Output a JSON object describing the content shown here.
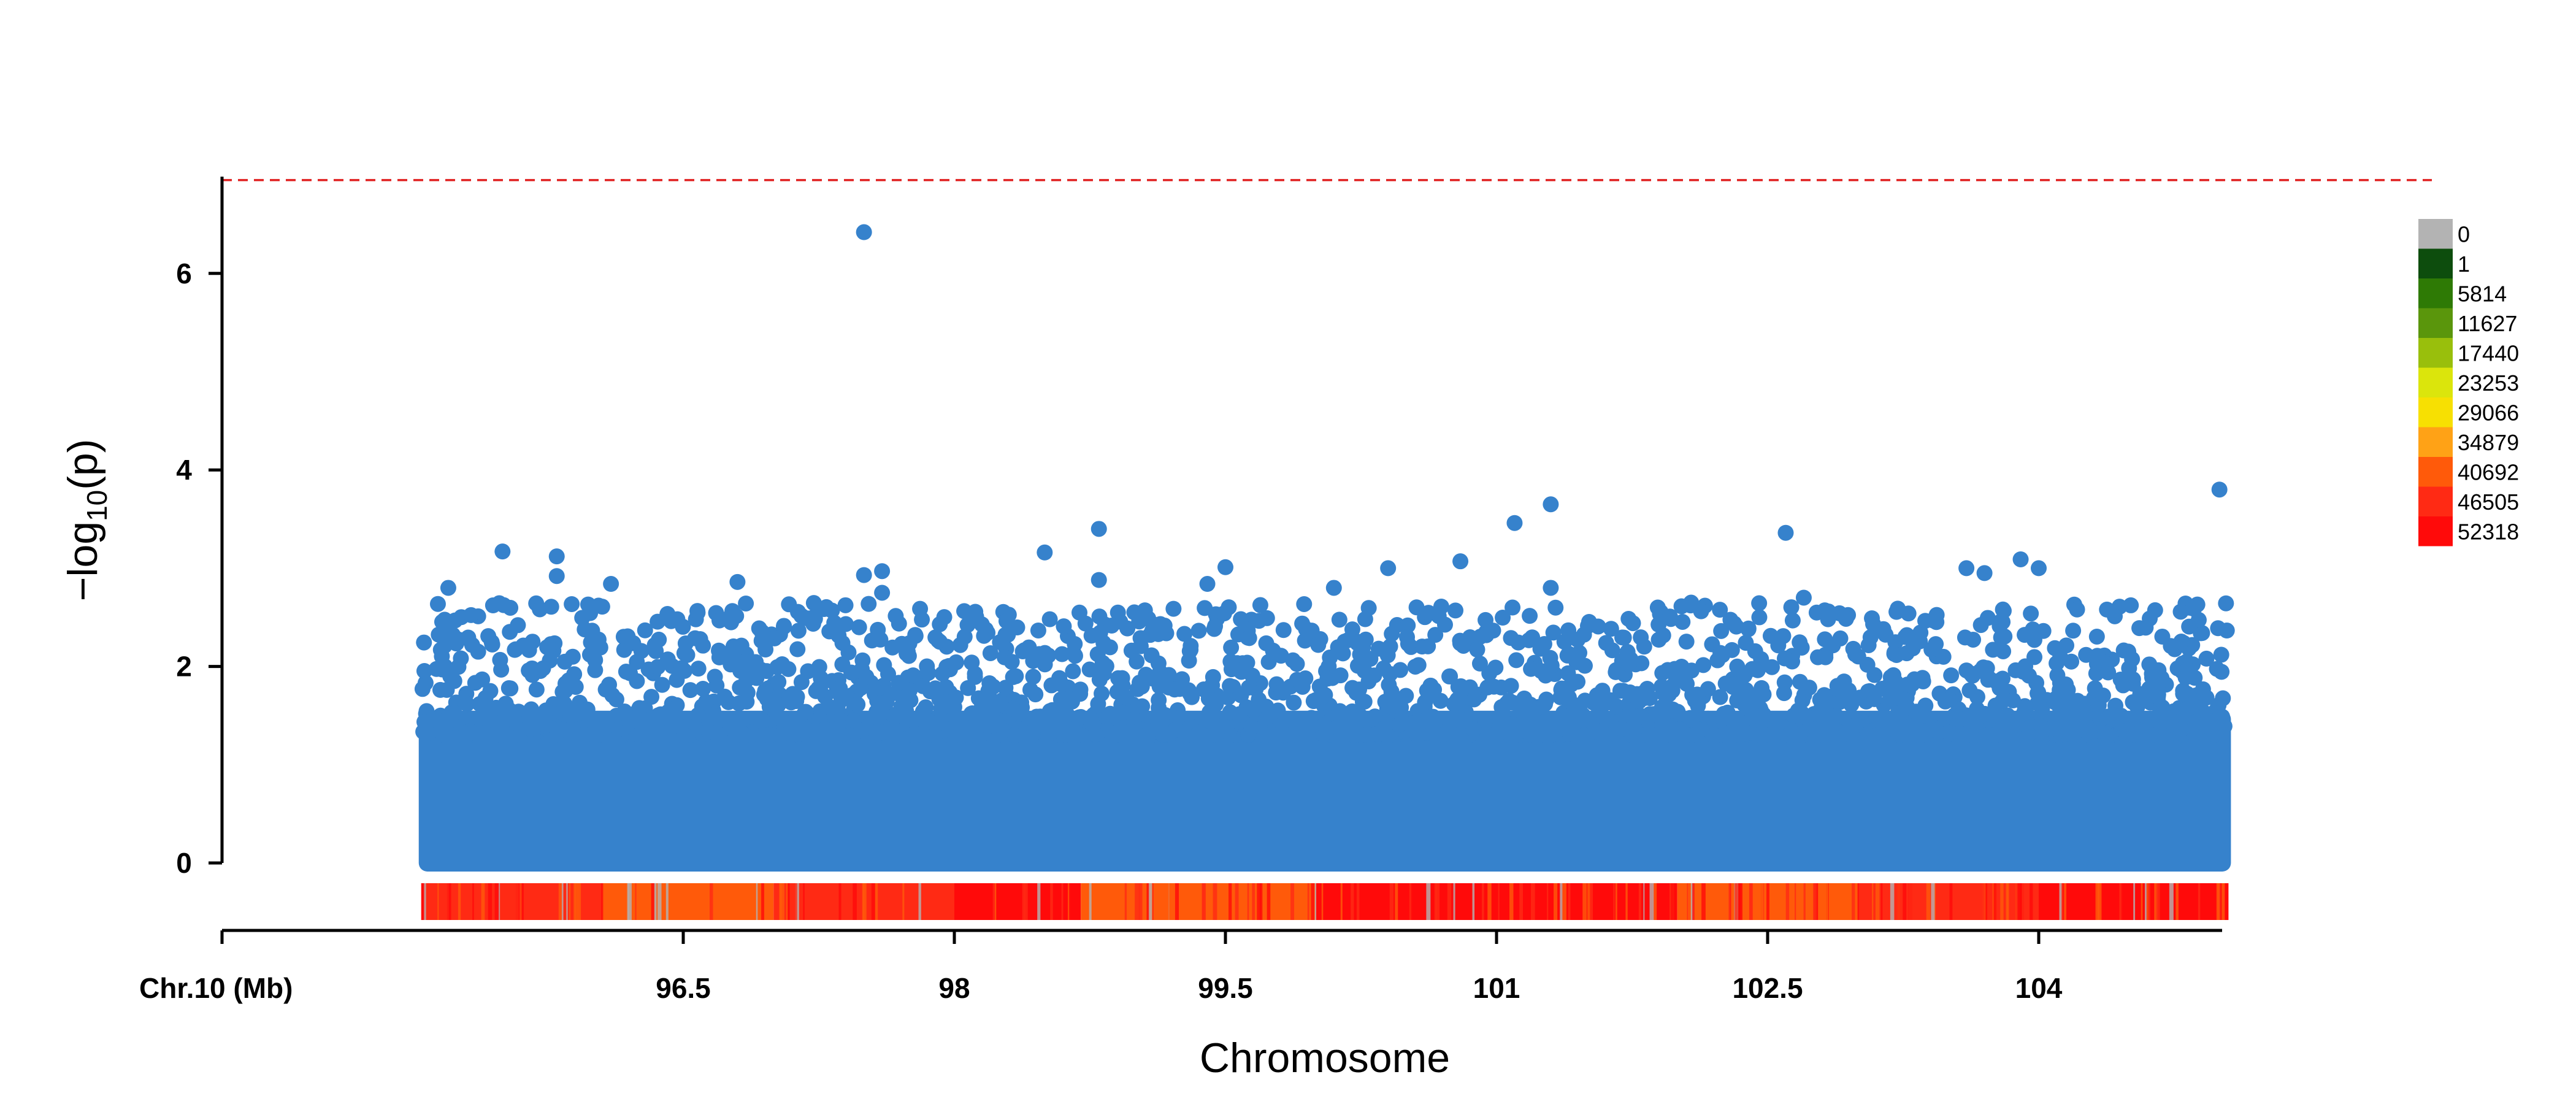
{
  "chart_data": {
    "type": "scatter",
    "subtype": "manhattan",
    "xlabel": "Chromosome",
    "ylabel": "-log10(p)",
    "chromosome_label": "Chr.10 (Mb)",
    "x_unit": "Mb",
    "xlim": [
      94.0,
      105.5
    ],
    "ylim": [
      0,
      7
    ],
    "x_tick_values": [
      96.5,
      98,
      99.5,
      101,
      102.5,
      104
    ],
    "x_tick_labels": [
      "96.5",
      "98",
      "99.5",
      "101",
      "102.5",
      "104"
    ],
    "y_tick_values": [
      0,
      2,
      4,
      6
    ],
    "y_tick_labels": [
      "0",
      "2",
      "4",
      "6"
    ],
    "threshold": {
      "value": 6.95,
      "style": "dashed",
      "color": "#e02020"
    },
    "grid": false,
    "point_color": "#3682cc",
    "points_x_range": [
      95.05,
      105.05
    ],
    "notable_points": [
      {
        "x": 97.5,
        "y": 6.42
      },
      {
        "x": 105.0,
        "y": 3.8
      },
      {
        "x": 101.3,
        "y": 3.65
      },
      {
        "x": 101.1,
        "y": 3.46
      },
      {
        "x": 98.8,
        "y": 3.4
      },
      {
        "x": 102.6,
        "y": 3.36
      },
      {
        "x": 95.5,
        "y": 3.17
      },
      {
        "x": 95.8,
        "y": 3.12
      },
      {
        "x": 98.5,
        "y": 3.16
      },
      {
        "x": 100.8,
        "y": 3.07
      },
      {
        "x": 103.9,
        "y": 3.09
      },
      {
        "x": 99.5,
        "y": 3.01
      },
      {
        "x": 100.4,
        "y": 3.0
      },
      {
        "x": 103.6,
        "y": 3.0
      },
      {
        "x": 104.0,
        "y": 3.0
      },
      {
        "x": 97.6,
        "y": 2.97
      },
      {
        "x": 103.7,
        "y": 2.95
      },
      {
        "x": 97.5,
        "y": 2.93
      },
      {
        "x": 95.8,
        "y": 2.92
      },
      {
        "x": 96.8,
        "y": 2.86
      },
      {
        "x": 98.8,
        "y": 2.88
      },
      {
        "x": 99.4,
        "y": 2.84
      },
      {
        "x": 96.1,
        "y": 2.84
      },
      {
        "x": 95.2,
        "y": 2.8
      },
      {
        "x": 100.1,
        "y": 2.8
      },
      {
        "x": 101.3,
        "y": 2.8
      },
      {
        "x": 97.6,
        "y": 2.75
      },
      {
        "x": 102.7,
        "y": 2.7
      }
    ],
    "density_legend": {
      "labels": [
        "0",
        "1",
        "5814",
        "11627",
        "17440",
        "23253",
        "29066",
        "34879",
        "40692",
        "46505",
        "52318"
      ],
      "colors": [
        "#b3b3b3",
        "#0d4d0d",
        "#2e7a05",
        "#5a960c",
        "#99bf0c",
        "#dbe50c",
        "#f7e002",
        "#ffa216",
        "#ff5a0a",
        "#ff2a14",
        "#ff0a0a"
      ]
    },
    "density_bar": {
      "x_range": [
        95.05,
        105.05
      ],
      "segments": [
        {
          "x0": 95.05,
          "x1": 96.05,
          "level": 9
        },
        {
          "x0": 96.05,
          "x1": 97.0,
          "level": 8
        },
        {
          "x0": 97.0,
          "x1": 98.0,
          "level": 9
        },
        {
          "x0": 98.0,
          "x1": 98.7,
          "level": 10
        },
        {
          "x0": 98.7,
          "x1": 100.0,
          "level": 8
        },
        {
          "x0": 100.0,
          "x1": 102.0,
          "level": 10
        },
        {
          "x0": 102.0,
          "x1": 103.0,
          "level": 8
        },
        {
          "x0": 103.0,
          "x1": 104.0,
          "level": 9
        },
        {
          "x0": 104.0,
          "x1": 105.05,
          "level": 10
        }
      ]
    }
  }
}
